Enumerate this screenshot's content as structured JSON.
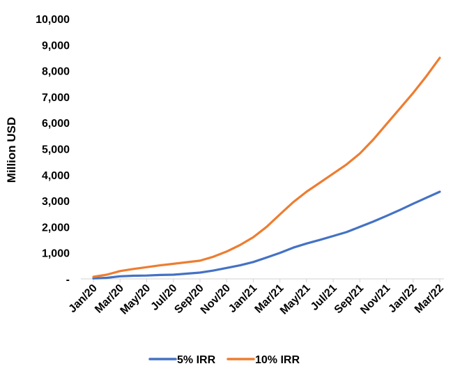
{
  "chart_data": {
    "type": "line",
    "title": "",
    "xlabel": "",
    "ylabel": "Million USD",
    "ylim": [
      0,
      10000
    ],
    "yticks": [
      0,
      1000,
      2000,
      3000,
      4000,
      5000,
      6000,
      7000,
      8000,
      9000,
      10000
    ],
    "ytick_labels": [
      "-",
      "1,000",
      "2,000",
      "3,000",
      "4,000",
      "5,000",
      "6,000",
      "7,000",
      "8,000",
      "9,000",
      "10,000"
    ],
    "grid": false,
    "legend_position": "bottom",
    "x": [
      "Jan/20",
      "Feb/20",
      "Mar/20",
      "Apr/20",
      "May/20",
      "Jun/20",
      "Jul/20",
      "Aug/20",
      "Sep/20",
      "Oct/20",
      "Nov/20",
      "Dec/20",
      "Jan/21",
      "Feb/21",
      "Mar/21",
      "Apr/21",
      "May/21",
      "Jun/21",
      "Jul/21",
      "Aug/21",
      "Sep/21",
      "Oct/21",
      "Nov/21",
      "Dec/21",
      "Jan/22",
      "Feb/22",
      "Mar/22"
    ],
    "x_tick_labels": [
      "Jan/20",
      "Mar/20",
      "May/20",
      "Jul/20",
      "Sep/20",
      "Nov/20",
      "Jan/21",
      "Mar/21",
      "May/21",
      "Jul/21",
      "Sep/21",
      "Nov/21",
      "Jan/22",
      "Mar/22"
    ],
    "series": [
      {
        "name": "5% IRR",
        "color": "#4472C4",
        "values": [
          20,
          40,
          100,
          120,
          130,
          150,
          160,
          200,
          240,
          320,
          420,
          520,
          650,
          820,
          1000,
          1200,
          1360,
          1500,
          1650,
          1800,
          2000,
          2200,
          2420,
          2650,
          2890,
          3120,
          3350
        ]
      },
      {
        "name": "10% IRR",
        "color": "#ED7D31",
        "values": [
          80,
          160,
          300,
          380,
          450,
          520,
          580,
          640,
          700,
          850,
          1050,
          1300,
          1600,
          2000,
          2480,
          2950,
          3350,
          3700,
          4050,
          4400,
          4820,
          5350,
          5950,
          6550,
          7150,
          7800,
          8500
        ]
      }
    ]
  }
}
